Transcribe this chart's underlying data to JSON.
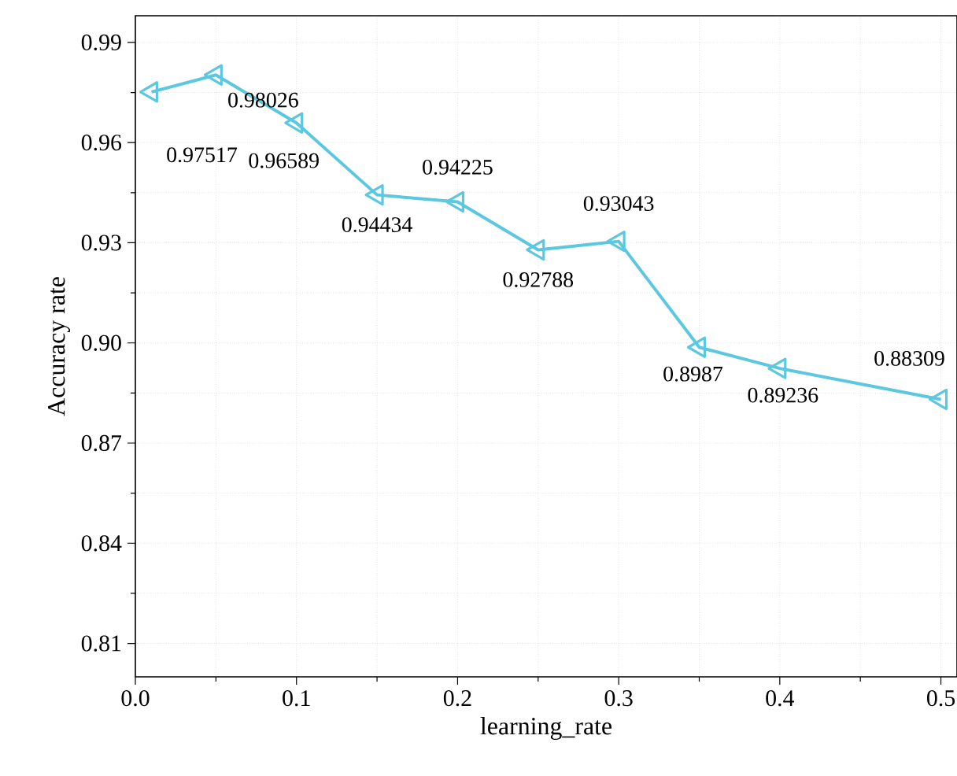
{
  "chart_data": {
    "type": "line",
    "xlabel": "learning_rate",
    "ylabel": "Accuracy rate",
    "x": [
      0.01,
      0.05,
      0.1,
      0.15,
      0.2,
      0.25,
      0.3,
      0.35,
      0.4,
      0.5
    ],
    "series": [
      {
        "color": "#5bc8e0",
        "values": [
          0.97517,
          0.98026,
          0.96589,
          0.94434,
          0.94225,
          0.92788,
          0.93043,
          0.8987,
          0.89236,
          0.88309
        ]
      }
    ],
    "xlim": [
      0,
      0.51
    ],
    "ylim": [
      0.8,
      0.998
    ],
    "xticks": [
      {
        "value": 0,
        "label": "0.0"
      },
      0.1,
      0.2,
      0.3,
      0.4,
      0.5
    ],
    "yticks": [
      0.81,
      0.84,
      0.87,
      {
        "value": 0.9,
        "label": "0.90"
      },
      0.93,
      0.96,
      0.99
    ],
    "grid": true,
    "marker": "triangle",
    "line_style": "solid",
    "data_labels": true
  }
}
